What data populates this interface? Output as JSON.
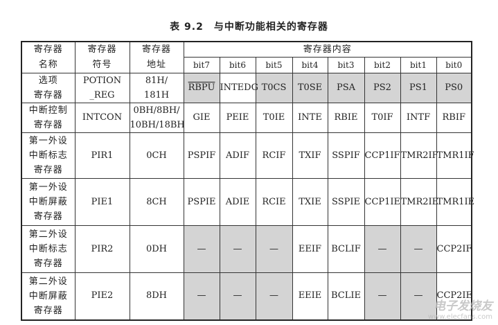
{
  "title": "表 9.2　与中断功能相关的寄存器",
  "header": {
    "col_name": [
      "寄存器",
      "名称"
    ],
    "col_symbol": [
      "寄存器",
      "符号"
    ],
    "col_address": [
      "寄存器",
      "地址"
    ],
    "col_content": "寄存器内容",
    "bits": [
      "bit7",
      "bit6",
      "bit5",
      "bit4",
      "bit3",
      "bit2",
      "bit1",
      "bit0"
    ]
  },
  "rows": [
    {
      "name": [
        "选项",
        "寄存器"
      ],
      "symbol": [
        "POTION",
        "_REG"
      ],
      "address": [
        "81H/",
        "181H"
      ],
      "bits": [
        "RBPU",
        "INTEDG",
        "T0CS",
        "T0SE",
        "PSA",
        "PS2",
        "PS1",
        "PS0"
      ],
      "shaded": [
        true,
        false,
        true,
        true,
        true,
        true,
        true,
        true
      ]
    },
    {
      "name": [
        "中断控制",
        "寄存器"
      ],
      "symbol": [
        "INTCON"
      ],
      "address": [
        "0BH/8BH/",
        "10BH/18BH"
      ],
      "bits": [
        "GIE",
        "PEIE",
        "T0IE",
        "INTE",
        "RBIE",
        "T0IF",
        "INTF",
        "RBIF"
      ],
      "shaded": [
        false,
        false,
        false,
        false,
        false,
        false,
        false,
        false
      ]
    },
    {
      "name": [
        "第一外设",
        "中断标志",
        "寄存器"
      ],
      "symbol": [
        "PIR1"
      ],
      "address": [
        "0CH"
      ],
      "bits": [
        "PSPIF",
        "ADIF",
        "RCIF",
        "TXIF",
        "SSPIF",
        "CCP1IF",
        "TMR2IF",
        "TMR1IF"
      ],
      "shaded": [
        false,
        false,
        false,
        false,
        false,
        false,
        false,
        false
      ]
    },
    {
      "name": [
        "第一外设",
        "中断屏蔽",
        "寄存器"
      ],
      "symbol": [
        "PIE1"
      ],
      "address": [
        "8CH"
      ],
      "bits": [
        "PSPIE",
        "ADIE",
        "RCIE",
        "TXIE",
        "SSPIE",
        "CCP1IE",
        "TMR2IE",
        "TMR1IE"
      ],
      "shaded": [
        false,
        false,
        false,
        false,
        false,
        false,
        false,
        false
      ]
    },
    {
      "name": [
        "第二外设",
        "中断标志",
        "寄存器"
      ],
      "symbol": [
        "PIR2"
      ],
      "address": [
        "0DH"
      ],
      "bits": [
        "—",
        "—",
        "—",
        "EEIF",
        "BCLIF",
        "—",
        "—",
        "CCP2IF"
      ],
      "shaded": [
        true,
        true,
        true,
        false,
        false,
        true,
        true,
        false
      ]
    },
    {
      "name": [
        "第二外设",
        "中断屏蔽",
        "寄存器"
      ],
      "symbol": [
        "PIE2"
      ],
      "address": [
        "8DH"
      ],
      "bits": [
        "—",
        "—",
        "—",
        "EEIE",
        "BCLIE",
        "—",
        "—",
        "CCP2IE"
      ],
      "shaded": [
        true,
        true,
        true,
        false,
        false,
        true,
        true,
        false
      ]
    }
  ],
  "colors": {
    "shade": "#d4d4d4",
    "border": "#333333"
  },
  "watermark": {
    "brand": "电子发烧友",
    "site": "www.elecfans.com"
  }
}
